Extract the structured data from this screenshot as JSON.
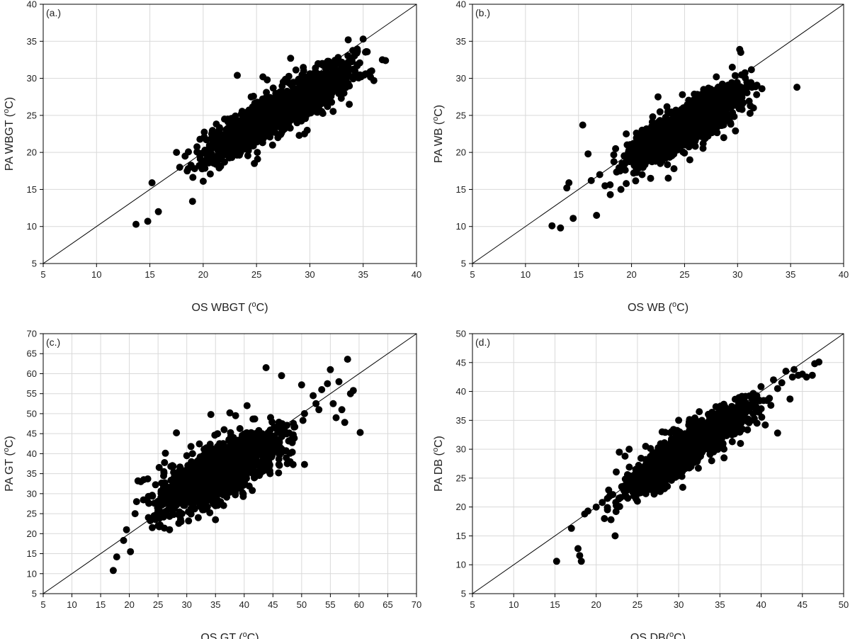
{
  "chart_data": [
    {
      "type": "scatter",
      "panel_label": "(a.)",
      "xlabel": "OS WBGT (",
      "ylabel": "PA WBGT (",
      "unit_sup": "o",
      "unit_suffix": "C)",
      "xlim": [
        5,
        40
      ],
      "ylim": [
        5,
        40
      ],
      "xticks": [
        5,
        10,
        15,
        20,
        25,
        30,
        35,
        40
      ],
      "yticks": [
        5,
        10,
        15,
        20,
        25,
        30,
        35,
        40
      ],
      "grid": true,
      "identity_line": true,
      "series": [
        {
          "trend": {
            "slope": 0.78,
            "intercept": 4.5,
            "x_range": [
              17.5,
              37
            ],
            "spread": 1.4
          },
          "points": [
            [
              13.7,
              10.3
            ],
            [
              14.8,
              10.7
            ],
            [
              15.2,
              15.9
            ],
            [
              15.8,
              12.0
            ],
            [
              19.0,
              13.4
            ],
            [
              17.5,
              20.0
            ],
            [
              17.8,
              18.0
            ],
            [
              18.3,
              19.5
            ],
            [
              18.5,
              17.5
            ],
            [
              19.2,
              17.8
            ],
            [
              20.0,
              16.1
            ],
            [
              20.3,
              19.0
            ],
            [
              20.8,
              22.5
            ],
            [
              21.5,
              17.9
            ],
            [
              22.0,
              18.7
            ],
            [
              23.2,
              30.4
            ],
            [
              24.0,
              21.7
            ],
            [
              24.8,
              18.5
            ],
            [
              25.1,
              19.1
            ],
            [
              25.6,
              30.2
            ],
            [
              26.0,
              29.8
            ],
            [
              27.0,
              22.0
            ],
            [
              28.2,
              32.7
            ],
            [
              29.0,
              22.3
            ],
            [
              29.5,
              22.5
            ],
            [
              30.3,
              25.8
            ],
            [
              31.2,
              31.8
            ],
            [
              32.0,
              30.0
            ],
            [
              33.2,
              28.0
            ],
            [
              33.7,
              26.5
            ],
            [
              33.6,
              35.2
            ],
            [
              34.4,
              33.4
            ],
            [
              35.0,
              35.3
            ],
            [
              35.3,
              33.6
            ],
            [
              36.0,
              29.7
            ],
            [
              36.8,
              32.5
            ],
            [
              37.1,
              32.4
            ],
            [
              35.8,
              31.0
            ],
            [
              34.8,
              30.2
            ],
            [
              22.0,
              24.5
            ],
            [
              23.5,
              20.0
            ],
            [
              24.5,
              27.5
            ],
            [
              26.5,
              27.0
            ],
            [
              27.5,
              29.5
            ],
            [
              30.5,
              28.5
            ],
            [
              31.0,
              27.0
            ]
          ]
        }
      ]
    },
    {
      "type": "scatter",
      "panel_label": "(b.)",
      "xlabel": "OS WB (",
      "ylabel": "PA WB (",
      "unit_sup": "o",
      "unit_suffix": "C)",
      "xlim": [
        5,
        40
      ],
      "ylim": [
        5,
        40
      ],
      "xticks": [
        5,
        10,
        15,
        20,
        25,
        30,
        35,
        40
      ],
      "yticks": [
        5,
        10,
        15,
        20,
        25,
        30,
        35,
        40
      ],
      "grid": true,
      "identity_line": true,
      "series": [
        {
          "trend": {
            "slope": 0.82,
            "intercept": 3.0,
            "x_range": [
              17.5,
              32.5
            ],
            "spread": 1.3
          },
          "points": [
            [
              12.5,
              10.1
            ],
            [
              13.3,
              9.8
            ],
            [
              13.9,
              15.2
            ],
            [
              14.1,
              15.9
            ],
            [
              14.5,
              11.1
            ],
            [
              15.4,
              23.7
            ],
            [
              15.9,
              19.8
            ],
            [
              16.2,
              16.2
            ],
            [
              16.7,
              11.5
            ],
            [
              17.0,
              17.0
            ],
            [
              17.5,
              15.5
            ],
            [
              18.0,
              14.3
            ],
            [
              18.5,
              20.5
            ],
            [
              19.0,
              15.0
            ],
            [
              19.5,
              15.8
            ],
            [
              20.2,
              17.2
            ],
            [
              20.5,
              18.5
            ],
            [
              21.0,
              17.0
            ],
            [
              21.8,
              16.5
            ],
            [
              22.5,
              27.5
            ],
            [
              23.5,
              25.5
            ],
            [
              24.0,
              17.8
            ],
            [
              24.8,
              27.8
            ],
            [
              25.5,
              19.0
            ],
            [
              26.8,
              28.5
            ],
            [
              27.5,
              24.5
            ],
            [
              28.0,
              30.2
            ],
            [
              28.7,
              22.0
            ],
            [
              29.5,
              31.5
            ],
            [
              29.8,
              22.9
            ],
            [
              30.2,
              33.9
            ],
            [
              30.3,
              33.5
            ],
            [
              30.8,
              28.2
            ],
            [
              31.5,
              26.0
            ],
            [
              31.8,
              27.8
            ],
            [
              32.3,
              28.6
            ],
            [
              35.6,
              28.8
            ],
            [
              29.0,
              26.5
            ],
            [
              27.0,
              26.0
            ],
            [
              22.0,
              24.8
            ],
            [
              21.0,
              23.0
            ],
            [
              19.5,
              22.5
            ]
          ]
        }
      ]
    },
    {
      "type": "scatter",
      "panel_label": "(c.)",
      "xlabel": "OS GT (",
      "ylabel": "PA GT (",
      "unit_sup": "o",
      "unit_suffix": "C)",
      "xlim": [
        5,
        70
      ],
      "ylim": [
        5,
        70
      ],
      "xticks": [
        5,
        10,
        15,
        20,
        25,
        30,
        35,
        40,
        45,
        50,
        55,
        60,
        65,
        70
      ],
      "yticks": [
        5,
        10,
        15,
        20,
        25,
        30,
        35,
        40,
        45,
        50,
        55,
        60,
        65,
        70
      ],
      "grid": true,
      "identity_line": true,
      "series": [
        {
          "trend": {
            "slope": 0.68,
            "intercept": 11.5,
            "x_range": [
              20.5,
              51
            ],
            "spread": 3.2
          },
          "points": [
            [
              17.2,
              10.8
            ],
            [
              17.8,
              14.2
            ],
            [
              19.0,
              18.3
            ],
            [
              19.5,
              21.0
            ],
            [
              20.2,
              15.5
            ],
            [
              21.0,
              25.0
            ],
            [
              21.5,
              33.2
            ],
            [
              22.0,
              33.0
            ],
            [
              22.5,
              33.5
            ],
            [
              23.2,
              33.7
            ],
            [
              24.0,
              21.5
            ],
            [
              25.0,
              22.0
            ],
            [
              26.0,
              35.5
            ],
            [
              27.0,
              21.0
            ],
            [
              27.5,
              37.0
            ],
            [
              28.2,
              45.2
            ],
            [
              29.0,
              23.0
            ],
            [
              30.0,
              39.5
            ],
            [
              31.0,
              40.0
            ],
            [
              32.0,
              24.0
            ],
            [
              33.0,
              26.0
            ],
            [
              34.2,
              49.8
            ],
            [
              35.0,
              27.0
            ],
            [
              36.5,
              46.0
            ],
            [
              37.5,
              50.2
            ],
            [
              38.5,
              49.5
            ],
            [
              40.5,
              52.0
            ],
            [
              43.8,
              61.5
            ],
            [
              44.5,
              35.0
            ],
            [
              46.5,
              59.5
            ],
            [
              47.5,
              37.5
            ],
            [
              48.0,
              38.0
            ],
            [
              50.0,
              57.2
            ],
            [
              50.5,
              37.3
            ],
            [
              52.0,
              54.5
            ],
            [
              53.0,
              51.0
            ],
            [
              53.5,
              56.0
            ],
            [
              54.5,
              57.5
            ],
            [
              55.0,
              61.0
            ],
            [
              55.5,
              52.5
            ],
            [
              56.0,
              49.0
            ],
            [
              56.5,
              58.0
            ],
            [
              57.0,
              51.0
            ],
            [
              57.5,
              47.8
            ],
            [
              58.0,
              63.6
            ],
            [
              58.5,
              55.0
            ],
            [
              59.0,
              55.8
            ],
            [
              60.2,
              45.3
            ],
            [
              50.5,
              50.0
            ],
            [
              52.5,
              52.5
            ]
          ]
        }
      ]
    },
    {
      "type": "scatter",
      "panel_label": "(d.)",
      "xlabel": "OS DB(",
      "ylabel": "PA DB (",
      "unit_sup": "o",
      "unit_suffix": "C)",
      "xlim": [
        5,
        50
      ],
      "ylim": [
        5,
        50
      ],
      "xticks": [
        5,
        10,
        15,
        20,
        25,
        30,
        35,
        40,
        45,
        50
      ],
      "yticks": [
        5,
        10,
        15,
        20,
        25,
        30,
        35,
        40,
        45,
        50
      ],
      "grid": true,
      "identity_line": true,
      "series": [
        {
          "trend": {
            "slope": 0.92,
            "intercept": 1.5,
            "x_range": [
              20,
              42
            ],
            "spread": 1.6
          },
          "points": [
            [
              15.2,
              10.6
            ],
            [
              17.0,
              16.3
            ],
            [
              17.8,
              12.8
            ],
            [
              18.0,
              11.6
            ],
            [
              18.2,
              10.6
            ],
            [
              18.6,
              18.8
            ],
            [
              19.0,
              19.3
            ],
            [
              20.0,
              20.0
            ],
            [
              21.0,
              18.0
            ],
            [
              21.8,
              17.8
            ],
            [
              22.3,
              15.0
            ],
            [
              22.8,
              29.5
            ],
            [
              23.5,
              28.8
            ],
            [
              24.0,
              30.0
            ],
            [
              25.0,
              21.0
            ],
            [
              26.0,
              30.5
            ],
            [
              27.0,
              22.5
            ],
            [
              28.0,
              33.0
            ],
            [
              29.0,
              25.0
            ],
            [
              30.0,
              35.0
            ],
            [
              30.5,
              23.4
            ],
            [
              31.5,
              27.0
            ],
            [
              32.5,
              36.5
            ],
            [
              34.0,
              28.0
            ],
            [
              35.5,
              28.5
            ],
            [
              36.5,
              31.3
            ],
            [
              37.5,
              31.0
            ],
            [
              38.0,
              38.0
            ],
            [
              39.0,
              39.5
            ],
            [
              39.5,
              34.5
            ],
            [
              40.5,
              34.2
            ],
            [
              41.0,
              38.8
            ],
            [
              42.0,
              32.8
            ],
            [
              42.0,
              40.5
            ],
            [
              42.5,
              41.5
            ],
            [
              43.0,
              43.5
            ],
            [
              43.5,
              38.7
            ],
            [
              43.8,
              42.5
            ],
            [
              44.0,
              43.8
            ],
            [
              44.5,
              42.8
            ],
            [
              45.0,
              43.0
            ],
            [
              45.5,
              42.5
            ],
            [
              46.2,
              42.8
            ],
            [
              46.5,
              44.8
            ],
            [
              47.0,
              45.1
            ],
            [
              41.5,
              42.0
            ],
            [
              40.0,
              37.0
            ]
          ]
        }
      ]
    }
  ]
}
